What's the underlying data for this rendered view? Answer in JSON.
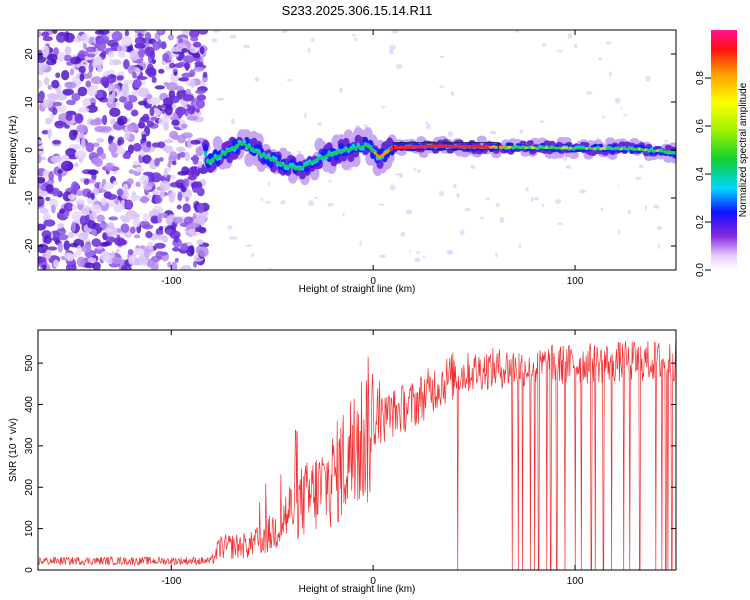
{
  "title": "S233.2025.306.15.14.R11",
  "chart_data": [
    {
      "type": "heatmap",
      "xlabel": "Height of straight line (km)",
      "ylabel": "Frequency (Hz)",
      "xlim": [
        -166,
        150
      ],
      "ylim": [
        -25,
        25
      ],
      "xticks": [
        -100,
        0,
        100
      ],
      "yticks": [
        -20,
        -10,
        0,
        10,
        20
      ],
      "noise_region_end_x": -83,
      "ridge": [
        {
          "x": -82,
          "y": -2.5
        },
        {
          "x": -75,
          "y": -1
        },
        {
          "x": -65,
          "y": 1.5
        },
        {
          "x": -55,
          "y": -1
        },
        {
          "x": -45,
          "y": -3
        },
        {
          "x": -37,
          "y": -4
        },
        {
          "x": -28,
          "y": -2
        },
        {
          "x": -18,
          "y": -0.5
        },
        {
          "x": -10,
          "y": 0.3
        },
        {
          "x": -3,
          "y": 1
        },
        {
          "x": 3,
          "y": -1.5
        },
        {
          "x": 10,
          "y": 0.5
        },
        {
          "x": 30,
          "y": 0.8
        },
        {
          "x": 60,
          "y": 0.6
        },
        {
          "x": 100,
          "y": 0.4
        },
        {
          "x": 130,
          "y": 0.2
        },
        {
          "x": 150,
          "y": -0.5
        }
      ],
      "colorbar": {
        "label": "Normalized spectral amplitude",
        "range": [
          0,
          1
        ],
        "ticks": [
          0.0,
          0.2,
          0.4,
          0.6,
          0.8
        ]
      }
    },
    {
      "type": "line",
      "xlabel": "Height of straight line (km)",
      "ylabel": "SNR (10 * v/v)",
      "xlim": [
        -166,
        150
      ],
      "ylim": [
        0,
        580
      ],
      "xticks": [
        -100,
        0,
        100
      ],
      "yticks": [
        0,
        100,
        200,
        300,
        400,
        500
      ],
      "series": [
        {
          "name": "SNR",
          "color": "#f03030",
          "trend": [
            {
              "x": -166,
              "y": 22
            },
            {
              "x": -80,
              "y": 22
            },
            {
              "x": -76,
              "y": 55
            },
            {
              "x": -60,
              "y": 60
            },
            {
              "x": -50,
              "y": 90
            },
            {
              "x": -40,
              "y": 150
            },
            {
              "x": -30,
              "y": 180
            },
            {
              "x": -20,
              "y": 220
            },
            {
              "x": -10,
              "y": 290
            },
            {
              "x": 0,
              "y": 350
            },
            {
              "x": 10,
              "y": 380
            },
            {
              "x": 20,
              "y": 400
            },
            {
              "x": 30,
              "y": 440
            },
            {
              "x": 40,
              "y": 470
            },
            {
              "x": 55,
              "y": 485
            },
            {
              "x": 70,
              "y": 490
            },
            {
              "x": 90,
              "y": 495
            },
            {
              "x": 110,
              "y": 500
            },
            {
              "x": 130,
              "y": 505
            },
            {
              "x": 150,
              "y": 505
            }
          ],
          "dropout_x": [
            42,
            69,
            72,
            74,
            78,
            80,
            82,
            86,
            88,
            91,
            95,
            100,
            103,
            108,
            110,
            114,
            118,
            124,
            127,
            132,
            140,
            143,
            145,
            146,
            148
          ]
        }
      ]
    }
  ]
}
